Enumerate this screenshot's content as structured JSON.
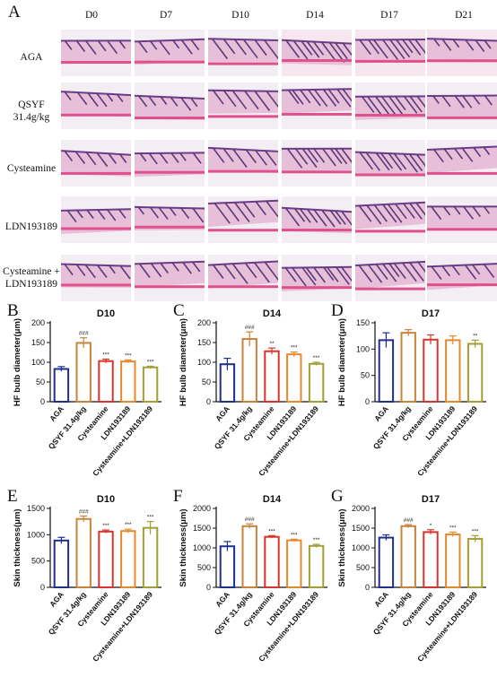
{
  "figure": {
    "panel_letters": [
      "A",
      "B",
      "C",
      "D",
      "E",
      "F",
      "G"
    ],
    "histology": {
      "columns": [
        "D0",
        "D7",
        "D10",
        "D14",
        "D17",
        "D21"
      ],
      "rows": [
        {
          "label_lines": [
            "AGA"
          ]
        },
        {
          "label_lines": [
            "QSYF",
            "31.4g/kg"
          ]
        },
        {
          "label_lines": [
            "Cysteamine"
          ]
        },
        {
          "label_lines": [
            "LDN193189"
          ]
        },
        {
          "label_lines": [
            "Cysteamine +",
            "LDN193189"
          ]
        }
      ]
    }
  },
  "chart_data": [
    {
      "panel": "B",
      "type": "bar",
      "title": "D10",
      "ylabel": "HF bulb diameter(μm)",
      "categories": [
        "AGA",
        "QSYF 31.4g/kg",
        "Cysteamine",
        "LDN193189",
        "Cysteamine+LDN193189"
      ],
      "values": [
        83,
        149,
        103,
        102,
        87
      ],
      "errors": [
        6,
        13,
        5,
        4,
        3
      ],
      "significance": [
        "",
        "###",
        "***",
        "***",
        "***"
      ],
      "ylim": [
        0,
        200
      ],
      "yticks": [
        0,
        50,
        100,
        150,
        200
      ],
      "colors": [
        "#1f2f8f",
        "#c8843a",
        "#d9342b",
        "#e48a2c",
        "#a2a035"
      ]
    },
    {
      "panel": "C",
      "type": "bar",
      "title": "D14",
      "ylabel": "HF bulb diameter(μm)",
      "categories": [
        "AGA",
        "QSYF 31.4g/kg",
        "Cysteamine",
        "LDN193189",
        "Cysteamine+LDN193189"
      ],
      "values": [
        95,
        159,
        128,
        120,
        96
      ],
      "errors": [
        15,
        18,
        8,
        6,
        4
      ],
      "significance": [
        "",
        "###",
        "**",
        "***",
        "***"
      ],
      "ylim": [
        0,
        200
      ],
      "yticks": [
        0,
        50,
        100,
        150,
        200
      ],
      "colors": [
        "#1f2f8f",
        "#c8843a",
        "#d9342b",
        "#e48a2c",
        "#a2a035"
      ]
    },
    {
      "panel": "D",
      "type": "bar",
      "title": "D17",
      "ylabel": "HF bulb diameter(μm)",
      "categories": [
        "AGA",
        "QSYF 31.4g/kg",
        "Cysteamine",
        "LDN193189",
        "Cysteamine+LDN193189"
      ],
      "values": [
        117,
        131,
        118,
        117,
        110
      ],
      "errors": [
        14,
        6,
        9,
        8,
        7
      ],
      "significance": [
        "",
        "",
        "",
        "",
        "**"
      ],
      "ylim": [
        0,
        150
      ],
      "yticks": [
        0,
        50,
        100,
        150
      ],
      "colors": [
        "#1f2f8f",
        "#c8843a",
        "#d9342b",
        "#e48a2c",
        "#a2a035"
      ]
    },
    {
      "panel": "E",
      "type": "bar",
      "title": "D10",
      "ylabel": "Skin thickness(μm)",
      "categories": [
        "AGA",
        "QSYF 31.4g/kg",
        "Cysteamine",
        "LDN193189",
        "Cysteamine+LDN193189"
      ],
      "values": [
        890,
        1300,
        1060,
        1070,
        1130
      ],
      "errors": [
        60,
        55,
        30,
        35,
        120
      ],
      "significance": [
        "",
        "###",
        "***",
        "***",
        "***"
      ],
      "ylim": [
        0,
        1500
      ],
      "yticks": [
        0,
        500,
        1000,
        1500
      ],
      "colors": [
        "#1f2f8f",
        "#c8843a",
        "#d9342b",
        "#e48a2c",
        "#a2a035"
      ]
    },
    {
      "panel": "F",
      "type": "bar",
      "title": "D14",
      "ylabel": "Skin thickness(μm)",
      "categories": [
        "AGA",
        "QSYF 31.4g/kg",
        "Cysteamine",
        "LDN193189",
        "Cysteamine+LDN193189"
      ],
      "values": [
        1040,
        1550,
        1280,
        1190,
        1050
      ],
      "errors": [
        120,
        60,
        30,
        30,
        40
      ],
      "significance": [
        "",
        "###",
        "***",
        "***",
        "***"
      ],
      "ylim": [
        0,
        2000
      ],
      "yticks": [
        0,
        500,
        1000,
        1500,
        2000
      ],
      "colors": [
        "#1f2f8f",
        "#c8843a",
        "#d9342b",
        "#e48a2c",
        "#a2a035"
      ]
    },
    {
      "panel": "G",
      "type": "bar",
      "title": "D17",
      "ylabel": "Skin thickness(μm)",
      "categories": [
        "AGA",
        "QSYF 31.4g/kg",
        "Cysteamine",
        "LDN193189",
        "Cysteamine+LDN193189"
      ],
      "values": [
        1260,
        1550,
        1400,
        1340,
        1230
      ],
      "errors": [
        70,
        40,
        60,
        60,
        80
      ],
      "significance": [
        "",
        "###",
        "*",
        "***",
        "***"
      ],
      "ylim": [
        0,
        2000
      ],
      "yticks": [
        0,
        500,
        1000,
        1500,
        2000
      ],
      "colors": [
        "#1f2f8f",
        "#c8843a",
        "#d9342b",
        "#e48a2c",
        "#a2a035"
      ]
    }
  ]
}
